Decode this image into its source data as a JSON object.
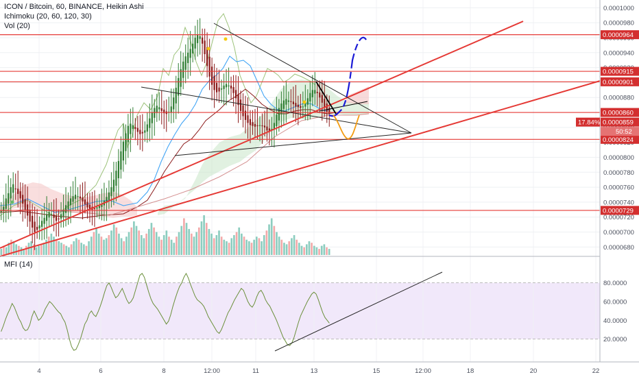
{
  "legend": {
    "symbol_line": "ICON / Bitcoin, 60, BINANCE, Heikin Ashi",
    "ichimoku_line": "Ichimoku (20, 60, 120, 30)",
    "vol_line": "Vol (20)",
    "mfi_line": "MFI (14)"
  },
  "colors": {
    "candle_up": "#2e7d32",
    "candle_down": "#8b1a1a",
    "level_line": "#e53935",
    "price_label": "#d32f2f",
    "trend_line": "#000000",
    "mfi_line": "#6a8f3a",
    "mfi_band": "#eadcf7",
    "tenkan": "#42a5f5",
    "kijun": "#8b1a1a",
    "span_b": "#d49090",
    "chikou": "#9cc27a",
    "projection_blue": "#1a1ad6",
    "projection_orange": "#f39c12"
  },
  "price_axis": {
    "labels": [
      "0.0001000",
      "0.0000980",
      "0.0000960",
      "0.0000940",
      "0.0000920",
      "0.0000900",
      "0.0000880",
      "0.0000860",
      "0.0000840",
      "0.0000820",
      "0.0000800",
      "0.0000780",
      "0.0000760",
      "0.0000740",
      "0.0000720",
      "0.0000700",
      "0.0000680"
    ],
    "level_labels": [
      "0.0000964",
      "0.0000915",
      "0.0000901",
      "0.0000860",
      "0.0000859",
      "0.0000824",
      "0.0000729"
    ],
    "current_change": "17.84%",
    "current_price": "0.0000859",
    "countdown": "50:52"
  },
  "mfi_axis": {
    "labels": [
      "80.0000",
      "60.0000",
      "40.0000",
      "20.0000"
    ]
  },
  "time_axis": {
    "labels": [
      "4",
      "6",
      "8",
      "12:00",
      "11",
      "13",
      "15",
      "12:00",
      "18",
      "20",
      "22"
    ]
  },
  "chart_data": {
    "type": "candlestick",
    "title": "ICON / Bitcoin, 60, BINANCE, Heikin Ashi",
    "y_range": [
      6.73e-05,
      0.0001004
    ],
    "mfi_range": [
      0,
      100
    ],
    "horizontal_levels": [
      9.64e-05,
      9.15e-05,
      9.01e-05,
      8.6e-05,
      8.24e-05,
      7.29e-05
    ],
    "candles_close": [
      7.28e-05,
      7.34e-05,
      7.45e-05,
      7.52e-05,
      7.6e-05,
      7.64e-05,
      7.58e-05,
      7.51e-05,
      7.45e-05,
      7.38e-05,
      7.3e-05,
      7.22e-05,
      7.14e-05,
      7.06e-05,
      7e-05,
      7.03e-05,
      7.09e-05,
      7.15e-05,
      7.19e-05,
      7.24e-05,
      7.27e-05,
      7.24e-05,
      7.19e-05,
      7.15e-05,
      7.18e-05,
      7.24e-05,
      7.3e-05,
      7.36e-05,
      7.41e-05,
      7.45e-05,
      7.48e-05,
      7.5e-05,
      7.48e-05,
      7.45e-05,
      7.41e-05,
      7.37e-05,
      7.33e-05,
      7.31e-05,
      7.3e-05,
      7.31e-05,
      7.33e-05,
      7.35e-05,
      7.38e-05,
      7.42e-05,
      7.47e-05,
      7.53e-05,
      7.6e-05,
      7.7e-05,
      7.82e-05,
      7.95e-05,
      8.08e-05,
      8.21e-05,
      8.32e-05,
      8.42e-05,
      8.45e-05,
      8.43e-05,
      8.38e-05,
      8.34e-05,
      8.31e-05,
      8.32e-05,
      8.36e-05,
      8.44e-05,
      8.52e-05,
      8.6e-05,
      8.66e-05,
      8.69e-05,
      8.67e-05,
      8.62e-05,
      8.59e-05,
      8.58e-05,
      8.61e-05,
      8.68e-05,
      8.8e-05,
      8.93e-05,
      9.06e-05,
      9.18e-05,
      9.28e-05,
      9.35e-05,
      9.4e-05,
      9.45e-05,
      9.52e-05,
      9.6e-05,
      9.64e-05,
      9.62e-05,
      9.52e-05,
      9.38e-05,
      9.22e-05,
      9.08e-05,
      8.97e-05,
      8.9e-05,
      8.87e-05,
      8.88e-05,
      8.92e-05,
      8.96e-05,
      8.98e-05,
      8.96e-05,
      8.92e-05,
      8.86e-05,
      8.79e-05,
      8.7e-05,
      8.62e-05,
      8.55e-05,
      8.5e-05,
      8.46e-05,
      8.43e-05,
      8.42e-05,
      8.41e-05,
      8.42e-05,
      8.43e-05,
      8.42e-05,
      8.4e-05,
      8.36e-05,
      8.34e-05,
      8.38e-05,
      8.46e-05,
      8.57e-05,
      8.66e-05,
      8.72e-05,
      8.76e-05,
      8.78e-05,
      8.76e-05,
      8.74e-05,
      8.71e-05,
      8.68e-05,
      8.67e-05,
      8.66e-05,
      8.68e-05,
      8.73e-05,
      8.79e-05,
      8.86e-05,
      8.9e-05,
      8.9e-05,
      8.86e-05,
      8.8e-05,
      8.73e-05,
      8.66e-05,
      8.61e-05,
      8.59e-05
    ],
    "mfi": [
      28,
      34,
      41,
      47,
      52,
      58,
      54,
      48,
      42,
      38,
      32,
      29,
      30,
      35,
      44,
      50,
      45,
      40,
      42,
      46,
      52,
      56,
      60,
      58,
      55,
      52,
      49,
      47,
      42,
      38,
      30,
      20,
      12,
      8,
      9,
      14,
      20,
      28,
      36,
      40,
      47,
      50,
      46,
      44,
      49,
      55,
      62,
      70,
      77,
      80,
      75,
      69,
      64,
      66,
      70,
      74,
      68,
      62,
      58,
      60,
      64,
      72,
      80,
      88,
      90,
      86,
      78,
      70,
      63,
      58,
      55,
      52,
      48,
      44,
      40,
      36,
      39,
      46,
      55,
      63,
      70,
      76,
      80,
      86,
      90,
      85,
      78,
      72,
      66,
      62,
      60,
      58,
      55,
      50,
      44,
      40,
      36,
      32,
      28,
      26,
      30,
      36,
      42,
      48,
      52,
      57,
      62,
      66,
      70,
      74,
      72,
      66,
      60,
      56,
      54,
      58,
      65,
      70,
      72,
      68,
      62,
      58,
      55,
      50,
      45,
      40,
      34,
      28,
      22,
      18,
      14,
      13,
      16,
      22,
      30,
      38,
      45,
      50,
      55,
      60,
      64,
      68,
      70,
      68,
      62,
      55,
      48,
      43,
      40,
      37
    ],
    "volume": [
      4,
      6,
      5,
      8,
      10,
      9,
      7,
      6,
      5,
      4,
      6,
      8,
      9,
      7,
      5,
      6,
      7,
      8,
      10,
      12,
      14,
      12,
      10,
      9,
      8,
      7,
      6,
      5,
      7,
      9,
      11,
      10,
      8,
      7,
      6,
      9,
      12,
      15,
      18,
      14,
      12,
      10,
      11,
      13,
      16,
      20,
      18,
      14,
      11,
      9,
      12,
      15,
      18,
      22,
      19,
      16,
      13,
      11,
      14,
      17,
      21,
      18,
      15,
      12,
      10,
      13,
      16,
      12,
      10,
      8,
      12,
      15,
      19,
      24,
      21,
      17,
      14,
      12,
      15,
      18,
      22,
      26,
      21,
      17,
      14,
      11,
      13,
      16,
      12,
      10,
      9,
      8,
      11,
      13,
      15,
      18,
      14,
      12,
      10,
      9,
      8,
      10,
      12,
      11,
      9,
      13,
      16,
      20,
      24,
      19,
      15,
      12,
      10,
      8,
      7,
      9,
      11,
      13,
      10,
      8,
      6,
      5,
      7,
      9,
      8,
      6,
      5,
      4,
      6,
      7,
      5,
      4
    ],
    "trend_lines": [
      {
        "from": [
          "4 06:00",
          6.78e-05
        ],
        "to": [
          "19 12:00",
          9.87e-05
        ]
      },
      {
        "from": [
          "3 06:00",
          6.83e-05
        ],
        "to": [
          "22",
          9.09e-05
        ]
      },
      {
        "from": [
          "12:00",
          9.88e-05
        ],
        "to": [
          "16 06:00",
          8.43e-05
        ]
      },
      {
        "from": [
          "7 12:00",
          8.95e-05
        ],
        "to": [
          "16 06:00",
          8.43e-05
        ]
      },
      {
        "from": [
          "9 06:00",
          8.05e-05
        ],
        "to": [
          "16 06:00",
          8.43e-05
        ]
      }
    ],
    "mfi_trend_line": {
      "from": [
        "11 18:00",
        13
      ],
      "to": [
        "17 00:00",
        84
      ]
    }
  }
}
